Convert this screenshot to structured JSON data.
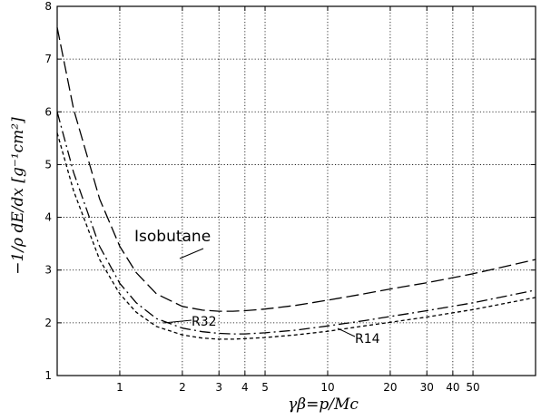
{
  "chart_data": {
    "type": "line",
    "xlabel": "γβ=p/Mc",
    "ylabel": "−1/ρ dE/dx [g⁻¹cm²]",
    "xscale": "log",
    "xlim": [
      0.5,
      100
    ],
    "ylim": [
      1,
      8
    ],
    "grid": true,
    "x_ticks": [
      1,
      2,
      3,
      4,
      5,
      10,
      20,
      30,
      40,
      50
    ],
    "x_tick_labels": [
      "1",
      "2",
      "3",
      "4",
      "5",
      "10",
      "20",
      "30",
      "40",
      "50"
    ],
    "y_ticks": [
      1,
      2,
      3,
      4,
      5,
      6,
      7,
      8
    ],
    "y_tick_labels": [
      "1",
      "2",
      "3",
      "4",
      "5",
      "6",
      "7",
      "8"
    ],
    "series": [
      {
        "name": "Isobutane",
        "dash": "long-dash",
        "x": [
          0.5,
          0.6,
          0.8,
          1,
          1.2,
          1.5,
          2,
          2.5,
          3,
          3.5,
          4,
          5,
          7,
          10,
          15,
          20,
          30,
          50,
          100
        ],
        "y": [
          7.6,
          6.05,
          4.35,
          3.45,
          2.95,
          2.55,
          2.31,
          2.24,
          2.22,
          2.22,
          2.23,
          2.26,
          2.33,
          2.43,
          2.55,
          2.64,
          2.76,
          2.93,
          3.2
        ]
      },
      {
        "name": "R32",
        "dash": "dash-dot",
        "x": [
          0.5,
          0.6,
          0.8,
          1,
          1.2,
          1.5,
          2,
          2.5,
          3,
          3.5,
          4,
          5,
          7,
          10,
          15,
          20,
          30,
          50,
          100
        ],
        "y": [
          6.0,
          4.85,
          3.45,
          2.75,
          2.38,
          2.08,
          1.9,
          1.83,
          1.8,
          1.79,
          1.79,
          1.81,
          1.86,
          1.94,
          2.04,
          2.12,
          2.23,
          2.38,
          2.62
        ]
      },
      {
        "name": "R14",
        "dash": "short-dash",
        "x": [
          0.5,
          0.6,
          0.8,
          1,
          1.2,
          1.5,
          2,
          2.5,
          3,
          3.5,
          4,
          5,
          7,
          10,
          15,
          20,
          30,
          50,
          100
        ],
        "y": [
          5.6,
          4.5,
          3.2,
          2.55,
          2.2,
          1.93,
          1.77,
          1.71,
          1.69,
          1.69,
          1.7,
          1.72,
          1.77,
          1.84,
          1.94,
          2.01,
          2.11,
          2.25,
          2.48
        ]
      }
    ],
    "annotations": [
      {
        "text": "Isobutane",
        "series": "Isobutane"
      },
      {
        "text": "R32",
        "series": "R32"
      },
      {
        "text": "R14",
        "series": "R14"
      }
    ]
  }
}
